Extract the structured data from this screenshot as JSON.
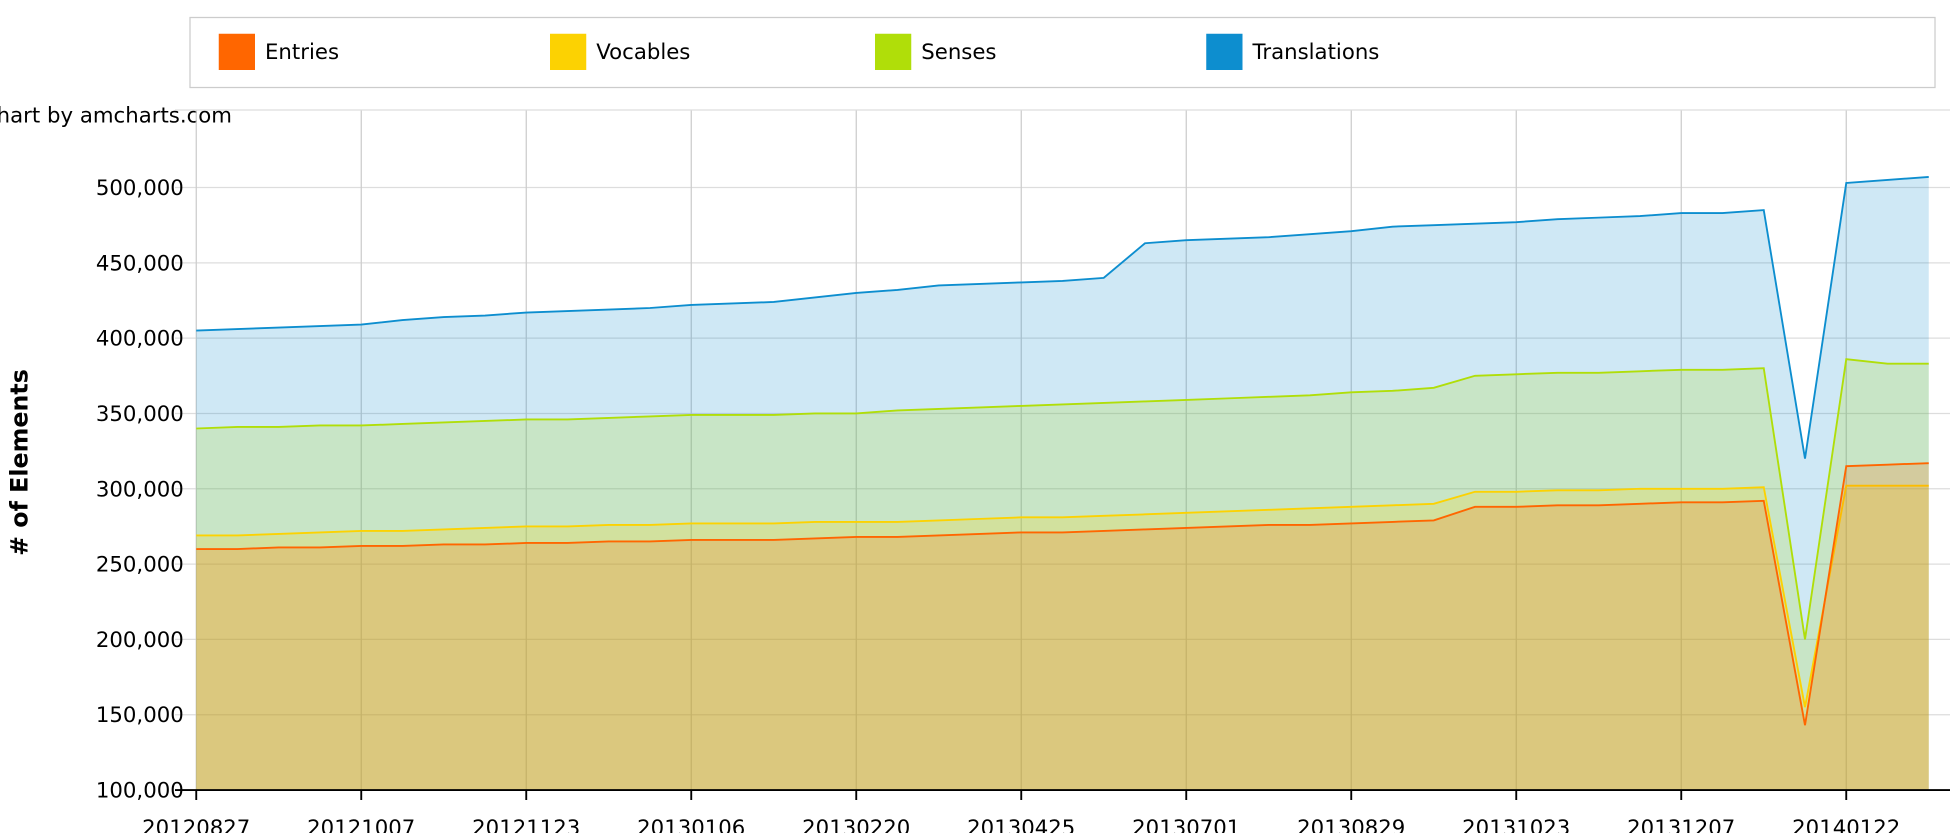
{
  "chart_data": {
    "type": "area",
    "credit": "chart by amcharts.com",
    "title": "",
    "xlabel": "",
    "ylabel": "# of Elements",
    "ylim": [
      100000,
      550000
    ],
    "yticks": [
      100000,
      150000,
      200000,
      250000,
      300000,
      350000,
      400000,
      450000,
      500000
    ],
    "ytick_labels": [
      "100,000",
      "150,000",
      "200,000",
      "250,000",
      "300,000",
      "350,000",
      "400,000",
      "450,000",
      "500,000"
    ],
    "x_labels": [
      {
        "index": 0,
        "label": "20120827"
      },
      {
        "index": 4,
        "label": "20121007"
      },
      {
        "index": 8,
        "label": "20121123"
      },
      {
        "index": 12,
        "label": "20130106"
      },
      {
        "index": 16,
        "label": "20130220"
      },
      {
        "index": 20,
        "label": "20130425"
      },
      {
        "index": 24,
        "label": "20130701"
      },
      {
        "index": 28,
        "label": "20130829"
      },
      {
        "index": 32,
        "label": "20131023"
      },
      {
        "index": 36,
        "label": "20131207"
      },
      {
        "index": 40,
        "label": "20140122"
      }
    ],
    "point_count": 43,
    "grid": true,
    "legend_position": "top",
    "series": [
      {
        "name": "Translations",
        "color": "#0D8ECF",
        "values": [
          405000,
          406000,
          407000,
          408000,
          409000,
          412000,
          414000,
          415000,
          417000,
          418000,
          419000,
          420000,
          422000,
          423000,
          424000,
          427000,
          430000,
          432000,
          435000,
          436000,
          437000,
          438000,
          440000,
          463000,
          465000,
          466000,
          467000,
          469000,
          471000,
          474000,
          475000,
          476000,
          477000,
          479000,
          480000,
          481000,
          483000,
          483000,
          485000,
          320000,
          503000,
          505000,
          507000
        ]
      },
      {
        "name": "Senses",
        "color": "#B0DE09",
        "values": [
          340000,
          341000,
          341000,
          342000,
          342000,
          343000,
          344000,
          345000,
          346000,
          346000,
          347000,
          348000,
          349000,
          349000,
          349000,
          350000,
          350000,
          352000,
          353000,
          354000,
          355000,
          356000,
          357000,
          358000,
          359000,
          360000,
          361000,
          362000,
          364000,
          365000,
          367000,
          375000,
          376000,
          377000,
          377000,
          378000,
          379000,
          379000,
          380000,
          200000,
          386000,
          383000,
          383000
        ]
      },
      {
        "name": "Vocables",
        "color": "#FCD202",
        "values": [
          269000,
          269000,
          270000,
          271000,
          272000,
          272000,
          273000,
          274000,
          275000,
          275000,
          276000,
          276000,
          277000,
          277000,
          277000,
          278000,
          278000,
          278000,
          279000,
          280000,
          281000,
          281000,
          282000,
          283000,
          284000,
          285000,
          286000,
          287000,
          288000,
          289000,
          290000,
          298000,
          298000,
          299000,
          299000,
          300000,
          300000,
          300000,
          301000,
          155000,
          302000,
          302000,
          302000
        ]
      },
      {
        "name": "Entries",
        "color": "#FF6600",
        "values": [
          260000,
          260000,
          261000,
          261000,
          262000,
          262000,
          263000,
          263000,
          264000,
          264000,
          265000,
          265000,
          266000,
          266000,
          266000,
          267000,
          268000,
          268000,
          269000,
          270000,
          271000,
          271000,
          272000,
          273000,
          274000,
          275000,
          276000,
          276000,
          277000,
          278000,
          279000,
          288000,
          288000,
          289000,
          289000,
          290000,
          291000,
          291000,
          292000,
          143000,
          315000,
          316000,
          317000
        ]
      }
    ],
    "legend": [
      {
        "name": "Entries",
        "color": "#FF6600"
      },
      {
        "name": "Vocables",
        "color": "#FCD202"
      },
      {
        "name": "Senses",
        "color": "#B0DE09"
      },
      {
        "name": "Translations",
        "color": "#0D8ECF"
      }
    ]
  }
}
